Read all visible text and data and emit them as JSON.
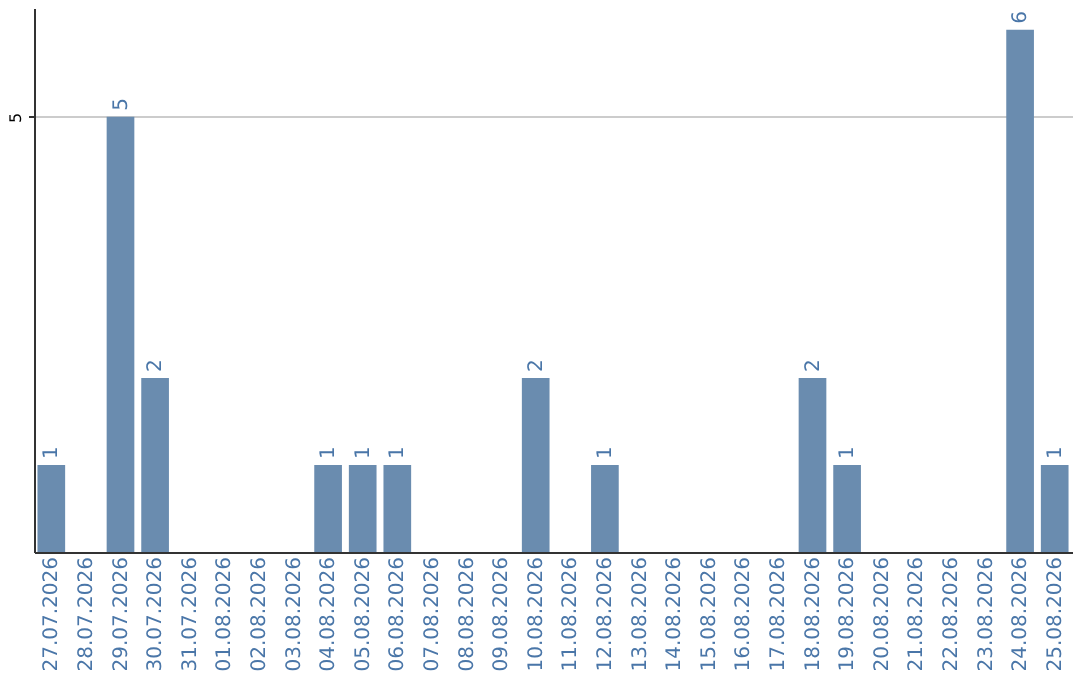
{
  "chart_data": {
    "type": "bar",
    "categories": [
      "27.07.2026",
      "28.07.2026",
      "29.07.2026",
      "30.07.2026",
      "31.07.2026",
      "01.08.2026",
      "02.08.2026",
      "03.08.2026",
      "04.08.2026",
      "05.08.2026",
      "06.08.2026",
      "07.08.2026",
      "08.08.2026",
      "09.08.2026",
      "10.08.2026",
      "11.08.2026",
      "12.08.2026",
      "13.08.2026",
      "14.08.2026",
      "15.08.2026",
      "16.08.2026",
      "17.08.2026",
      "18.08.2026",
      "19.08.2026",
      "20.08.2026",
      "21.08.2026",
      "22.08.2026",
      "23.08.2026",
      "24.08.2026",
      "25.08.2026"
    ],
    "values": [
      1,
      0,
      5,
      2,
      0,
      0,
      0,
      0,
      1,
      1,
      1,
      0,
      0,
      0,
      2,
      0,
      1,
      0,
      0,
      0,
      0,
      0,
      2,
      1,
      0,
      0,
      0,
      0,
      6,
      1
    ],
    "value_labels": [
      "1",
      null,
      "5",
      "2",
      null,
      null,
      null,
      null,
      "1",
      "1",
      "1",
      null,
      null,
      null,
      "2",
      null,
      "1",
      null,
      null,
      null,
      null,
      null,
      "2",
      "1",
      null,
      null,
      null,
      null,
      "6",
      "1"
    ],
    "color": "#6a8caf",
    "ylim": [
      0,
      6.25
    ],
    "yticks": [
      5
    ],
    "grid": "y"
  }
}
